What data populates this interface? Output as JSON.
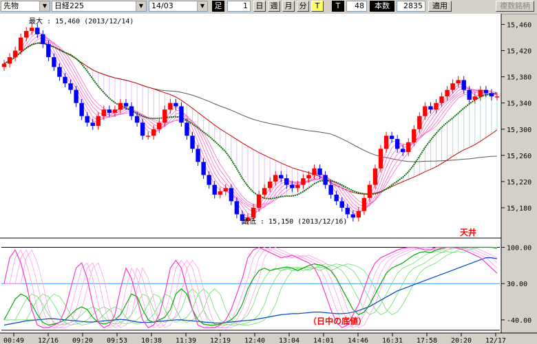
{
  "toolbar": {
    "instrument": "先物",
    "index": "日経225",
    "contract": "14/03",
    "ashi_label": "足",
    "ashi_value": "1",
    "day_label": "日",
    "week_label": "週",
    "month_label": "月",
    "minute_label": "分",
    "tick_label": "T",
    "t2_label": "T",
    "count_value": "48",
    "honsu_label": "本数",
    "bars_value": "2835",
    "apply_label": "適用",
    "multi_label": "複数銘柄"
  },
  "colors": {
    "up": "#ff0000",
    "down": "#0000ff",
    "ma_short": "#ff66cc",
    "ma_mid": "#006600",
    "ma_long_red": "#cc0000",
    "ma_long_gray": "#555555",
    "osc_blue": "#0044cc",
    "osc_green": "#00aa00",
    "osc_magenta": "#ff33cc"
  },
  "chart_data": {
    "type": "candlestick",
    "price_axis": {
      "ticks": [
        "15,460",
        "15,420",
        "15,380",
        "15,340",
        "15,300",
        "15,260",
        "15,220",
        "15,180"
      ],
      "min": 15140,
      "max": 15470
    },
    "time_axis": [
      "00:49",
      "12/16",
      "09:20",
      "09:53",
      "10:38",
      "11:39",
      "12:19",
      "12:40",
      "13:04",
      "14:01",
      "14:46",
      "16:31",
      "17:58",
      "20:20",
      "12/17"
    ],
    "annotations": {
      "high": "最大 : 15,460 (2013/12/14)",
      "low": "最低 : 15,150 (2013/12/16)",
      "ceiling": "天井",
      "floor": "（日中の底値）"
    },
    "close": [
      15400,
      15410,
      15420,
      15440,
      15450,
      15455,
      15445,
      15430,
      15410,
      15395,
      15380,
      15370,
      15360,
      15340,
      15320,
      15310,
      15305,
      15320,
      15330,
      15325,
      15330,
      15340,
      15335,
      15320,
      15310,
      15290,
      15290,
      15300,
      15310,
      15330,
      15340,
      15335,
      15310,
      15290,
      15270,
      15250,
      15230,
      15215,
      15200,
      15205,
      15210,
      15190,
      15170,
      15160,
      15165,
      15180,
      15200,
      15210,
      15220,
      15230,
      15225,
      15215,
      15210,
      15215,
      15225,
      15230,
      15240,
      15230,
      15215,
      15200,
      15190,
      15180,
      15170,
      15165,
      15175,
      15195,
      15215,
      15240,
      15270,
      15290,
      15285,
      15270,
      15265,
      15280,
      15300,
      15320,
      15335,
      15330,
      15340,
      15350,
      15360,
      15370,
      15375,
      15360,
      15345,
      15350,
      15360,
      15355,
      15350,
      15350
    ],
    "sub_axis": {
      "ticks": [
        "100.00",
        "30.00",
        "-40.00"
      ],
      "min": -60,
      "max": 110
    },
    "oscillator": {
      "blue": [
        -50,
        -48,
        -46,
        -44,
        -42,
        -41,
        -40,
        -39,
        -38,
        -38,
        -39,
        -40,
        -41,
        -42,
        -43,
        -44,
        -44,
        -43,
        -42,
        -41,
        -40,
        -39,
        -40,
        -42,
        -44,
        -45,
        -45,
        -44,
        -43,
        -42,
        -41,
        -40,
        -40,
        -41,
        -42,
        -43,
        -44,
        -45,
        -46,
        -46,
        -45,
        -44,
        -43,
        -42,
        -41,
        -40,
        -38,
        -36,
        -34,
        -32,
        -30,
        -29,
        -28,
        -28,
        -27,
        -26,
        -25,
        -25,
        -26,
        -27,
        -28,
        -28,
        -27,
        -25,
        -22,
        -18,
        -14,
        -8,
        -2,
        4,
        10,
        16,
        20,
        24,
        28,
        32,
        36,
        40,
        44,
        48,
        52,
        56,
        60,
        64,
        68,
        72,
        76,
        80,
        80,
        78
      ],
      "green": [
        -40,
        -20,
        0,
        10,
        5,
        -10,
        -30,
        -45,
        -50,
        -48,
        -45,
        -40,
        -30,
        -20,
        -15,
        -20,
        -35,
        -45,
        -48,
        -45,
        -40,
        -30,
        -10,
        10,
        5,
        -20,
        -40,
        -45,
        -40,
        -35,
        -20,
        10,
        20,
        10,
        -20,
        -40,
        -48,
        -50,
        -50,
        -48,
        -45,
        -40,
        -30,
        -10,
        20,
        40,
        55,
        60,
        55,
        58,
        60,
        62,
        60,
        55,
        60,
        65,
        68,
        66,
        62,
        55,
        40,
        20,
        0,
        -20,
        -30,
        -25,
        -10,
        10,
        30,
        50,
        60,
        65,
        70,
        78,
        85,
        90,
        92,
        90,
        95,
        98,
        100,
        100,
        100,
        100,
        100,
        100,
        100,
        100,
        100,
        98
      ],
      "magenta": [
        30,
        80,
        95,
        70,
        30,
        -20,
        -50,
        -55,
        -55,
        -50,
        -45,
        -20,
        20,
        60,
        70,
        40,
        -10,
        -45,
        -55,
        -50,
        -30,
        20,
        60,
        40,
        0,
        -40,
        -55,
        -50,
        -30,
        10,
        60,
        75,
        60,
        20,
        -20,
        -50,
        -55,
        -55,
        -55,
        -50,
        -40,
        -20,
        10,
        40,
        80,
        95,
        100,
        95,
        90,
        85,
        80,
        82,
        85,
        80,
        75,
        70,
        60,
        40,
        10,
        -20,
        -45,
        -55,
        -50,
        -30,
        -10,
        20,
        50,
        70,
        80,
        85,
        90,
        95,
        98,
        100,
        100,
        98,
        95,
        95,
        100,
        100,
        100,
        100,
        98,
        95,
        90,
        85,
        80,
        70,
        60,
        50
      ]
    }
  }
}
